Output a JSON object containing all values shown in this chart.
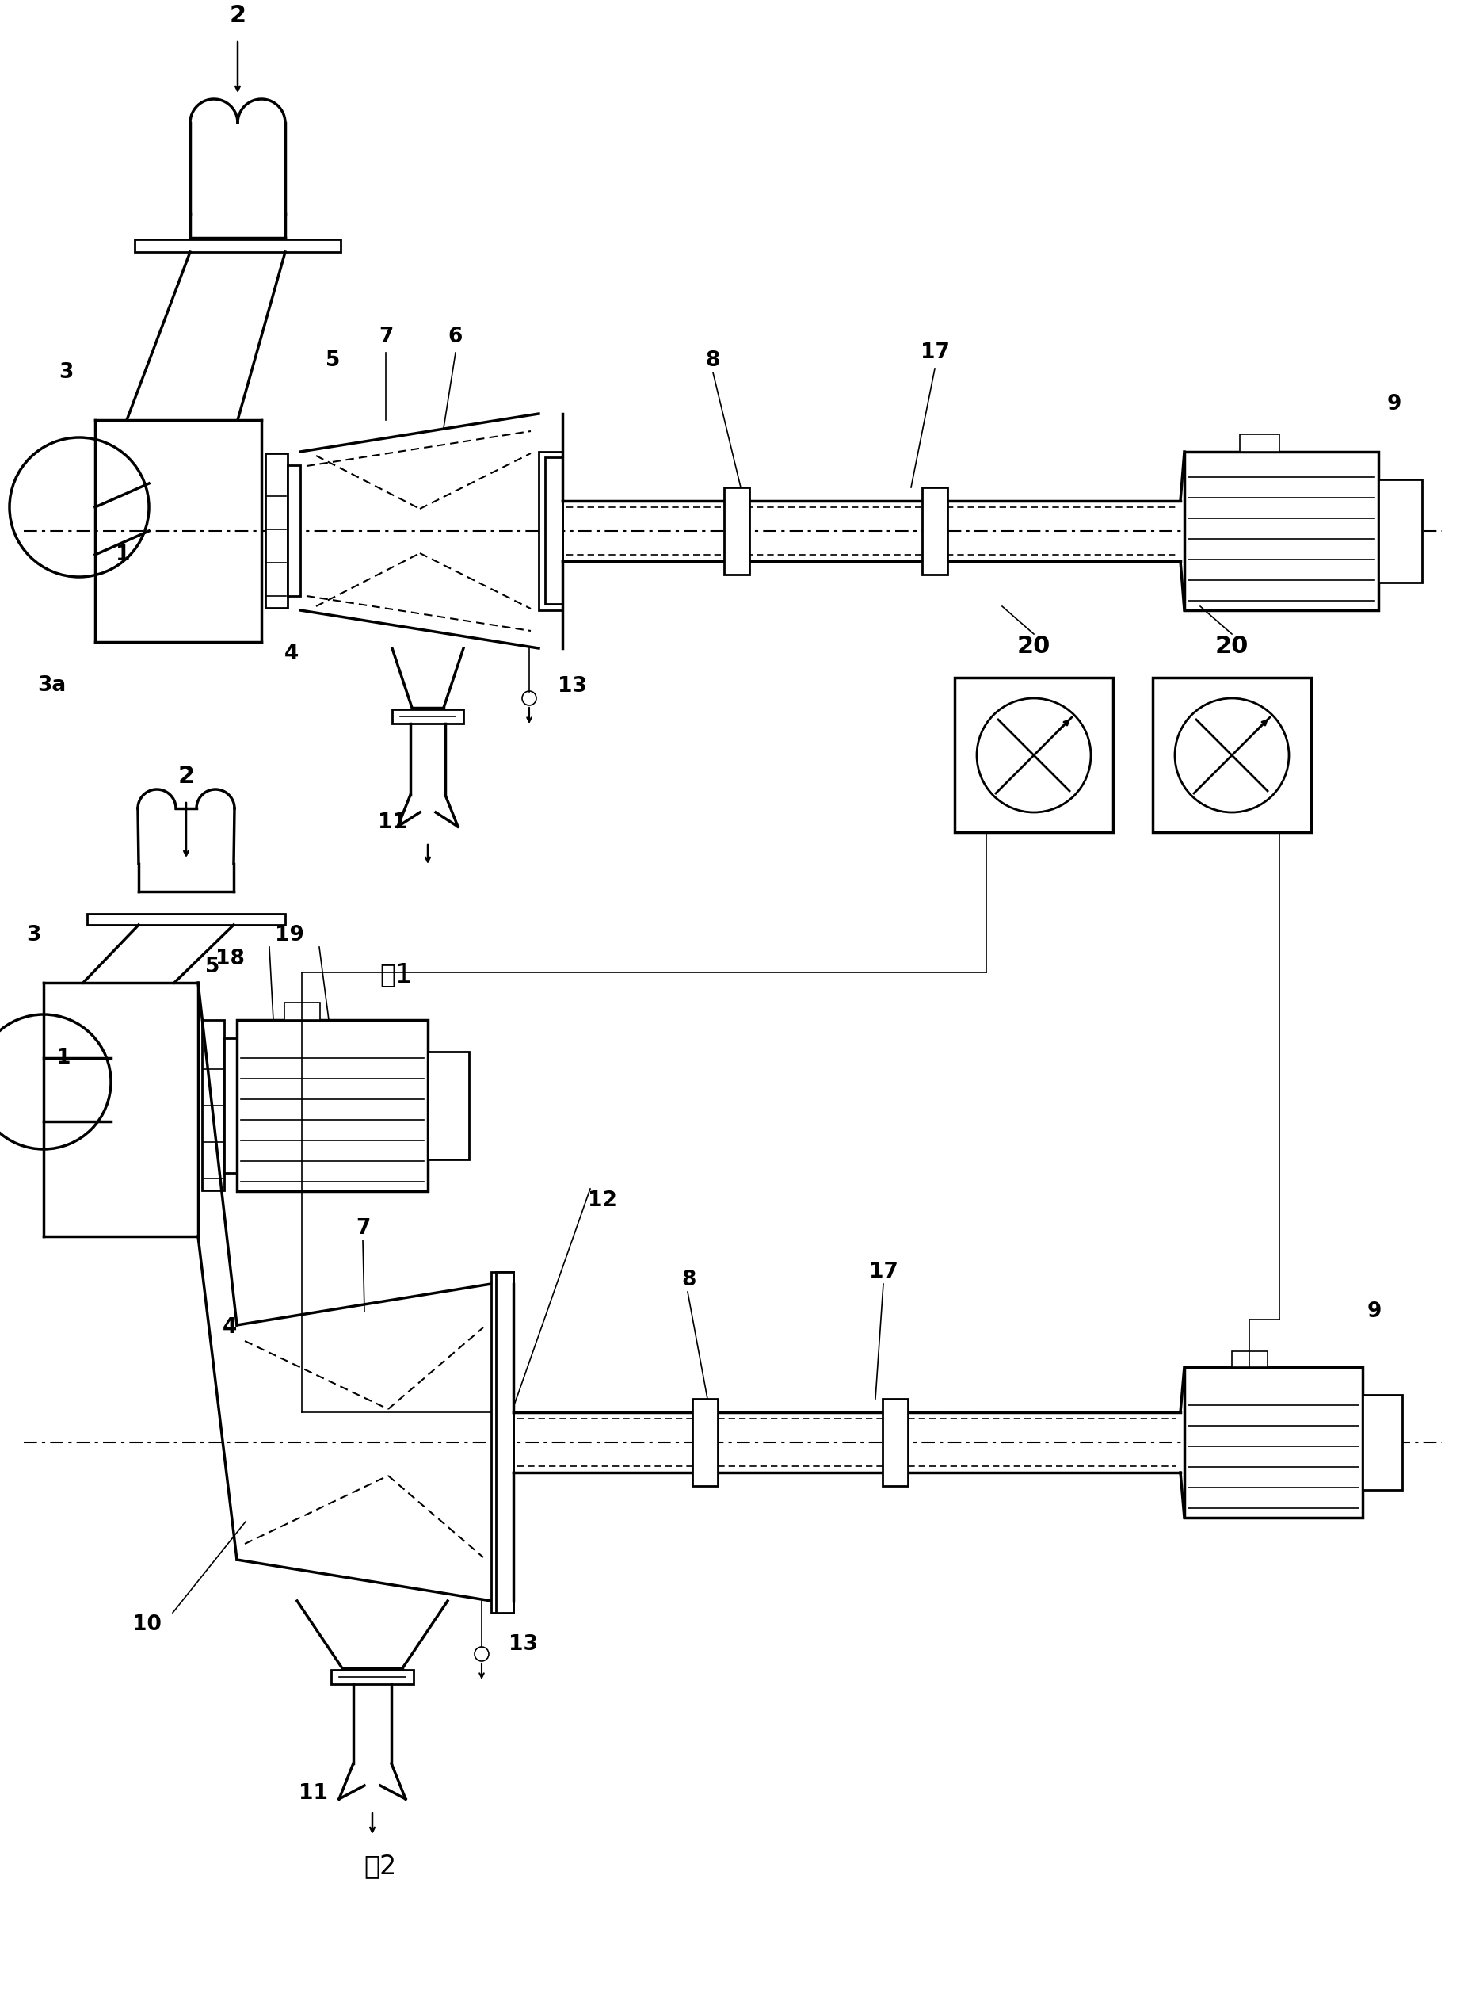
{
  "fig_width": 18.49,
  "fig_height": 25.4,
  "bg_color": "#ffffff",
  "fig1_label": "图1",
  "fig2_label": "图2"
}
